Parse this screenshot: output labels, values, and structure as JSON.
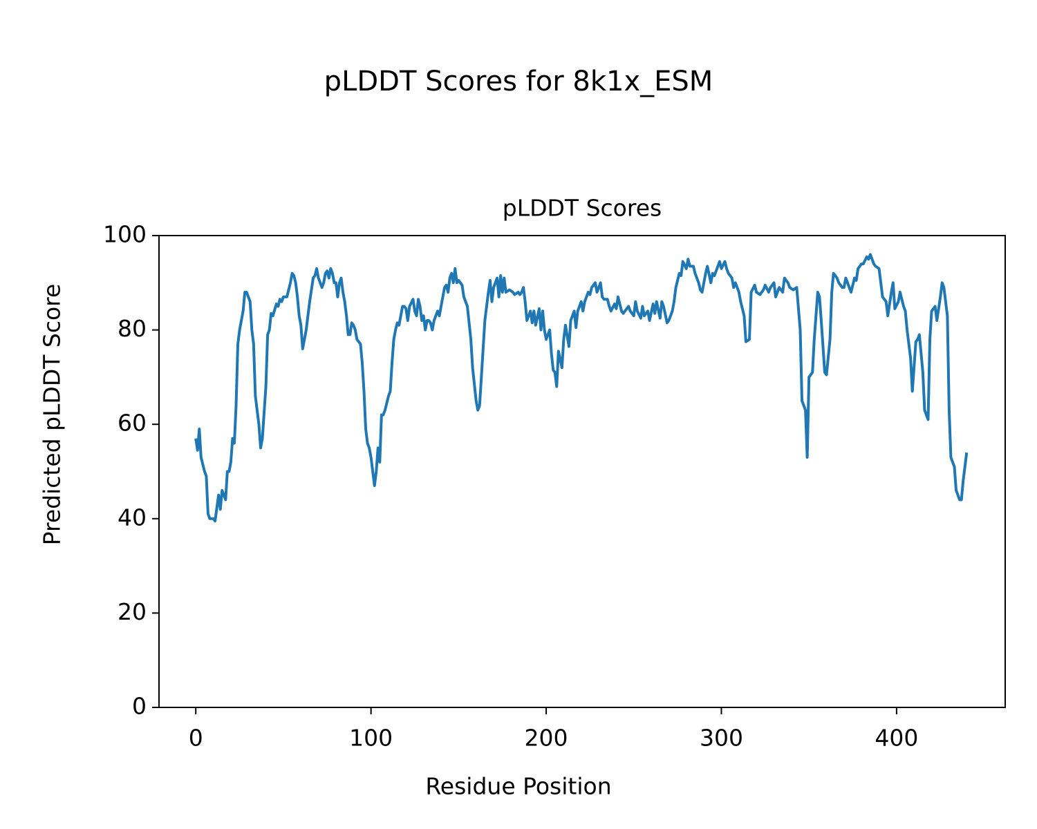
{
  "chart_data": {
    "type": "line",
    "title": "pLDDT Scores for 8k1x_ESM",
    "subtitle": "pLDDT Scores",
    "x_label": "Residue Position",
    "y_label": "Predicted pLDDT Score",
    "color": "#1f77b4",
    "xlim": [
      -21,
      462
    ],
    "xticks": [
      0,
      100,
      200,
      300,
      400
    ],
    "ylim": [
      0,
      100
    ],
    "yticks": [
      0,
      20,
      40,
      60,
      80,
      100
    ],
    "grid": false,
    "x": [
      0,
      1,
      2,
      3,
      5,
      6,
      7,
      8,
      10,
      11,
      13,
      14,
      15,
      17,
      18,
      19,
      20,
      21,
      22,
      23,
      24,
      25,
      27,
      28,
      29,
      31,
      32,
      33,
      34,
      36,
      37,
      38,
      40,
      41,
      42,
      43,
      44,
      46,
      47,
      48,
      49,
      50,
      52,
      54,
      55,
      56,
      57,
      58,
      59,
      60,
      61,
      63,
      65,
      67,
      68,
      69,
      70,
      72,
      73,
      74,
      75,
      76,
      77,
      78,
      79,
      80,
      81,
      82,
      83,
      84,
      85,
      86,
      87,
      88,
      89,
      90,
      91,
      92,
      93,
      94,
      95,
      96,
      97,
      98,
      99,
      100,
      102,
      103,
      104,
      105,
      106,
      107,
      108,
      110,
      111,
      112,
      113,
      114,
      115,
      116,
      117,
      118,
      119,
      120,
      121,
      122,
      124,
      125,
      126,
      127,
      128,
      129,
      130,
      131,
      132,
      133,
      134,
      135,
      136,
      137,
      138,
      139,
      141,
      142,
      143,
      144,
      145,
      146,
      147,
      148,
      149,
      150,
      151,
      152,
      153,
      154,
      155,
      157,
      158,
      160,
      161,
      162,
      163,
      165,
      167,
      168,
      169,
      170,
      172,
      173,
      174,
      175,
      176,
      177,
      179,
      181,
      182,
      184,
      185,
      186,
      187,
      188,
      189,
      191,
      192,
      193,
      194,
      196,
      197,
      198,
      199,
      200,
      202,
      203,
      204,
      205,
      206,
      207,
      209,
      210,
      211,
      213,
      214,
      216,
      217,
      218,
      220,
      221,
      222,
      224,
      225,
      226,
      228,
      229,
      231,
      232,
      233,
      235,
      236,
      237,
      239,
      240,
      241,
      243,
      244,
      246,
      247,
      248,
      250,
      251,
      252,
      254,
      255,
      256,
      258,
      259,
      261,
      262,
      263,
      265,
      266,
      267,
      269,
      270,
      272,
      273,
      274,
      276,
      277,
      278,
      280,
      281,
      282,
      284,
      285,
      287,
      288,
      289,
      291,
      292,
      294,
      295,
      296,
      298,
      299,
      300,
      302,
      303,
      304,
      306,
      307,
      308,
      310,
      311,
      313,
      314,
      316,
      317,
      319,
      320,
      322,
      324,
      325,
      327,
      328,
      330,
      331,
      333,
      335,
      336,
      338,
      339,
      341,
      343,
      345,
      346,
      348,
      349,
      350,
      352,
      353,
      355,
      356,
      357,
      359,
      360,
      362,
      363,
      364,
      366,
      367,
      369,
      370,
      371,
      373,
      374,
      376,
      377,
      378,
      380,
      381,
      383,
      384,
      385,
      387,
      388,
      390,
      391,
      392,
      394,
      395,
      397,
      398,
      399,
      401,
      402,
      404,
      405,
      406,
      408,
      409,
      411,
      412,
      413,
      415,
      416,
      418,
      419,
      420,
      422,
      423,
      425,
      426,
      427,
      429,
      430,
      431,
      433,
      434,
      436,
      437,
      438,
      440
    ],
    "values": [
      57,
      54.5,
      59,
      53,
      50,
      49,
      41,
      40,
      40,
      39.5,
      45,
      42,
      46,
      44,
      50,
      50,
      52,
      57,
      56,
      64,
      77,
      80,
      84,
      88,
      88,
      86,
      80,
      77,
      66,
      60,
      55,
      57,
      68,
      79,
      80,
      83.5,
      83,
      85.5,
      85,
      86.5,
      86,
      87,
      87,
      90,
      92,
      91.5,
      90,
      87,
      83,
      81,
      76,
      80,
      86,
      91,
      91.5,
      93,
      91,
      89,
      90,
      92,
      92.5,
      91,
      93,
      92,
      90,
      90,
      87,
      90,
      91,
      88,
      86,
      83,
      79,
      79,
      81.5,
      81,
      80,
      78,
      77.5,
      77,
      73,
      67,
      59,
      56,
      55,
      53,
      47,
      50,
      55,
      52,
      62,
      62,
      63,
      66,
      67,
      73,
      78,
      80,
      81.5,
      81,
      83,
      85,
      85,
      84.5,
      82,
      85,
      86.5,
      84,
      83,
      86.5,
      85,
      82,
      83,
      80,
      82,
      82,
      81.5,
      80,
      82,
      83,
      84,
      83,
      87,
      89,
      89.5,
      88,
      91,
      92,
      90,
      93,
      90,
      90.5,
      90,
      89.5,
      87,
      86,
      85,
      78,
      72,
      65,
      63,
      64,
      70,
      82,
      88,
      90.5,
      86,
      89,
      91,
      87,
      91.5,
      88,
      91,
      88,
      88.5,
      88,
      87.5,
      88,
      87.5,
      88,
      89,
      86,
      82,
      84,
      81.5,
      84,
      81,
      84.5,
      80,
      84,
      80,
      78,
      80,
      75,
      71.5,
      71,
      68,
      75.5,
      72,
      78,
      81,
      76.5,
      82,
      84,
      80.5,
      84,
      86,
      84,
      86,
      88,
      87.5,
      89,
      90,
      88,
      90,
      87,
      86.5,
      86.5,
      85,
      84,
      85.5,
      84.5,
      87,
      84,
      83.5,
      84.5,
      85,
      84,
      83,
      86,
      84,
      82.5,
      85,
      83,
      84,
      82,
      85.5,
      83.5,
      86,
      82.5,
      86,
      85,
      81.5,
      82,
      84,
      86,
      89,
      92,
      91.5,
      94.5,
      93,
      95,
      93.5,
      93.5,
      92,
      90,
      88.5,
      88,
      92,
      93.5,
      90,
      92,
      91.5,
      93.5,
      94.5,
      93,
      94.5,
      93,
      92,
      91,
      89,
      90,
      88,
      86,
      83,
      77.5,
      78,
      88,
      89.5,
      88,
      87.5,
      88.5,
      89.5,
      88,
      89,
      90,
      87,
      89,
      88,
      91,
      90,
      89,
      88.5,
      89,
      80,
      65,
      63,
      53,
      70,
      71,
      78,
      88,
      87,
      82,
      71,
      70.5,
      78,
      88,
      92,
      91,
      90,
      89,
      89,
      91,
      89,
      88,
      91,
      90.5,
      93,
      94,
      94,
      95.5,
      95,
      96,
      94,
      93.5,
      93,
      90,
      87,
      86,
      83,
      88,
      90,
      84.5,
      86,
      88,
      85,
      84,
      80,
      74,
      67,
      77.5,
      78,
      79,
      71,
      63,
      61,
      78,
      84,
      85,
      82,
      87,
      90,
      89,
      83,
      63,
      53,
      51,
      46,
      44,
      44,
      48,
      54
    ]
  }
}
